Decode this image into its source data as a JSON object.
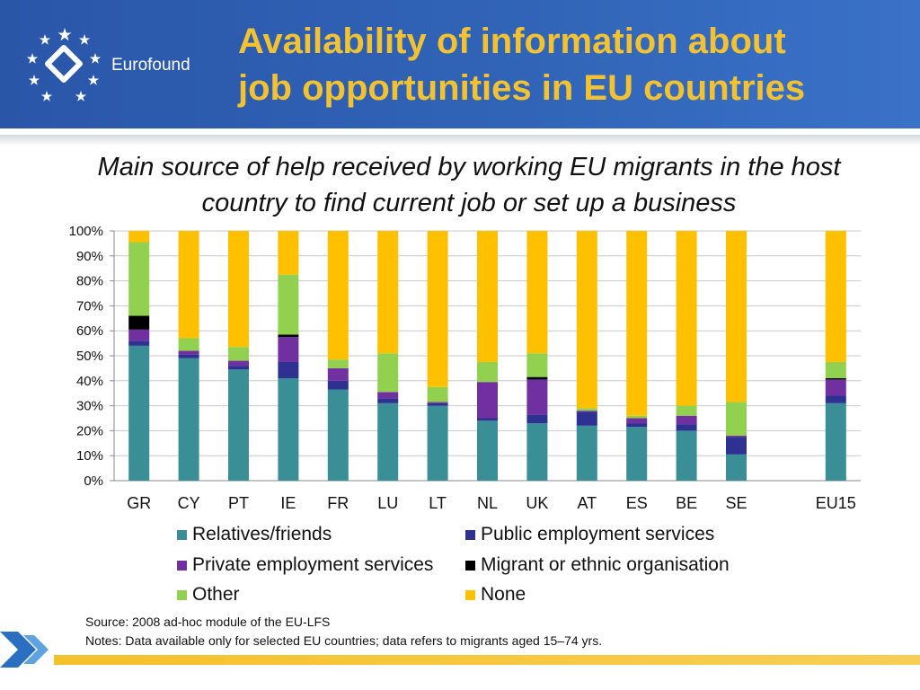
{
  "header": {
    "logo_text": "Eurofound",
    "title_line1": "Availability of information about",
    "title_line2": "job opportunities in EU countries"
  },
  "subtitle": {
    "line1": "Main source of help received by working EU migrants in the host",
    "line2": "country to find current job or set up a business"
  },
  "chart_data": {
    "type": "bar",
    "stacked": true,
    "ylim": [
      0,
      100
    ],
    "y_ticks": [
      "0%",
      "10%",
      "20%",
      "30%",
      "40%",
      "50%",
      "60%",
      "70%",
      "80%",
      "90%",
      "100%"
    ],
    "grid": true,
    "legend_position": "bottom",
    "categories": [
      "GR",
      "CY",
      "PT",
      "IE",
      "FR",
      "LU",
      "LT",
      "NL",
      "UK",
      "AT",
      "ES",
      "BE",
      "SE",
      "",
      "EU15"
    ],
    "series": [
      {
        "name": "Relatives/friends",
        "color": "#3a8f97",
        "values": [
          54,
          49,
          44.5,
          41,
          36.5,
          31,
          30,
          24,
          23,
          22,
          21.5,
          20,
          10.5,
          null,
          31
        ]
      },
      {
        "name": "Public employment services",
        "color": "#2e3192",
        "values": [
          2,
          1.5,
          1.5,
          6.5,
          3.5,
          2,
          1,
          1,
          3.5,
          5.5,
          1.5,
          2.5,
          7,
          null,
          3
        ]
      },
      {
        "name": "Private employment services",
        "color": "#7030a0",
        "values": [
          4.5,
          1.5,
          2,
          10,
          5,
          2.5,
          0.5,
          14.5,
          14,
          0.5,
          2,
          3.5,
          0.5,
          null,
          6.5
        ]
      },
      {
        "name": "Migrant or ethnic organisation",
        "color": "#000000",
        "values": [
          5.5,
          0,
          0,
          1,
          0,
          0,
          0,
          0,
          1,
          0,
          0,
          0,
          0,
          null,
          0.5
        ]
      },
      {
        "name": "Other",
        "color": "#92d050",
        "values": [
          29.5,
          5,
          5.5,
          24,
          3.5,
          15.5,
          6,
          8,
          9.5,
          1,
          1,
          4,
          13.5,
          null,
          6.5
        ]
      },
      {
        "name": "None",
        "color": "#ffc000",
        "values": [
          4.5,
          43,
          46.5,
          17.5,
          51.5,
          49,
          62.5,
          52.5,
          49,
          71,
          74,
          70,
          68.5,
          null,
          52.5
        ]
      }
    ]
  },
  "legend": {
    "items": [
      {
        "label": "Relatives/friends",
        "color": "#3a8f97"
      },
      {
        "label": "Public employment services",
        "color": "#2e3192"
      },
      {
        "label": "Private employment services",
        "color": "#7030a0"
      },
      {
        "label": "Migrant or ethnic organisation",
        "color": "#000000"
      },
      {
        "label": "Other",
        "color": "#92d050"
      },
      {
        "label": "None",
        "color": "#ffc000"
      }
    ]
  },
  "source": {
    "line1": "Source: 2008 ad-hoc module of the EU-LFS",
    "line2": "Notes: Data available only for selected EU countries; data refers to migrants aged 15–74 yrs."
  }
}
